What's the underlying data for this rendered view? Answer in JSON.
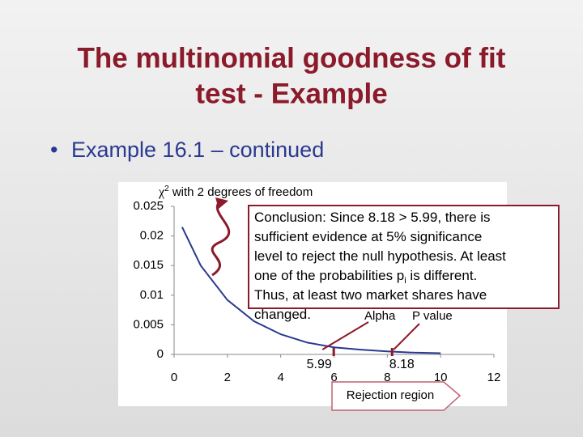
{
  "title_lines": [
    "The multinomial goodness of fit",
    "test - Example"
  ],
  "bullet": "Example 16.1 – continued",
  "chart_data": {
    "type": "line",
    "curve_label": {
      "symbol": "χ",
      "superscript": "2",
      "text": " with 2 degrees of freedom"
    },
    "x": [
      0.3,
      1,
      2,
      3,
      4,
      5,
      6,
      7,
      8,
      9,
      10
    ],
    "values": [
      0.0215,
      0.015,
      0.0092,
      0.0056,
      0.0034,
      0.002,
      0.0012,
      0.0008,
      0.0005,
      0.0003,
      0.0002
    ],
    "color": "#2b3990",
    "xlim": [
      0,
      12
    ],
    "xticks": [
      0,
      2,
      4,
      6,
      8,
      10,
      12
    ],
    "ylim": [
      0,
      0.025
    ],
    "yticks": [
      0,
      0.005,
      0.01,
      0.015,
      0.02,
      0.025
    ],
    "critical_value": 5.99,
    "test_statistic": 8.18,
    "alpha_label": "Alpha",
    "p_value_label": "P value",
    "region_label": "Rejection region",
    "conclusion": [
      [
        "Conclusion:  Since 8.18 > 5.99, there is"
      ],
      [
        "sufficient evidence at 5% significance"
      ],
      [
        "level to reject the null hypothesis. At least"
      ],
      [
        "one of the probabilities p",
        "i",
        " is different."
      ],
      [
        "Thus, at least two market shares have"
      ],
      [
        "changed."
      ]
    ]
  }
}
